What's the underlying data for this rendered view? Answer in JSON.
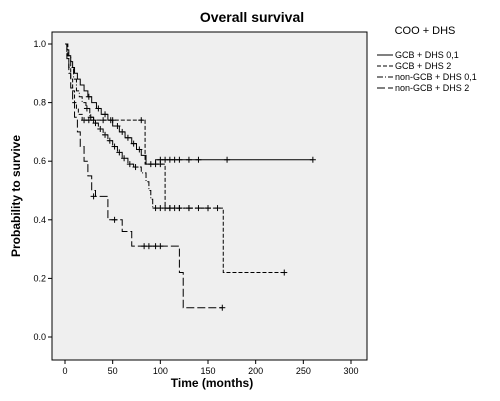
{
  "chart_data": {
    "type": "line",
    "title": "Overall survival",
    "xlabel": "Time (months)",
    "ylabel": "Probability to survive",
    "xlim": [
      0,
      300
    ],
    "ylim": [
      0,
      1
    ],
    "xticks": [
      0,
      50,
      100,
      150,
      200,
      250,
      300
    ],
    "yticks": [
      0.0,
      0.2,
      0.4,
      0.6,
      0.8,
      1.0
    ],
    "xtick_labels": [
      "0",
      "50",
      "100",
      "150",
      "200",
      "250",
      "300"
    ],
    "ytick_labels": [
      "0.0",
      "0.2",
      "0.4",
      "0.6",
      "0.8",
      "1.0"
    ],
    "grid": false,
    "plot_background": "#efefef",
    "legend": {
      "title": "COO + DHS",
      "placement": "right"
    },
    "series": [
      {
        "name": "GCB + DHS 0,1",
        "style": "solid",
        "points": [
          [
            0,
            1.0
          ],
          [
            2,
            0.98
          ],
          [
            4,
            0.96
          ],
          [
            6,
            0.94
          ],
          [
            8,
            0.92
          ],
          [
            10,
            0.9
          ],
          [
            13,
            0.88
          ],
          [
            16,
            0.86
          ],
          [
            20,
            0.84
          ],
          [
            24,
            0.82
          ],
          [
            28,
            0.8
          ],
          [
            33,
            0.78
          ],
          [
            38,
            0.76
          ],
          [
            45,
            0.74
          ],
          [
            50,
            0.72
          ],
          [
            57,
            0.7
          ],
          [
            63,
            0.68
          ],
          [
            70,
            0.66
          ],
          [
            75,
            0.64
          ],
          [
            80,
            0.62
          ],
          [
            85,
            0.59
          ],
          [
            90,
            0.59
          ],
          [
            95,
            0.605
          ],
          [
            260,
            0.605
          ]
        ],
        "censored": [
          [
            25,
            0.82
          ],
          [
            35,
            0.78
          ],
          [
            42,
            0.76
          ],
          [
            48,
            0.74
          ],
          [
            55,
            0.72
          ],
          [
            60,
            0.7
          ],
          [
            66,
            0.68
          ],
          [
            72,
            0.66
          ],
          [
            78,
            0.64
          ],
          [
            100,
            0.605
          ],
          [
            105,
            0.605
          ],
          [
            110,
            0.605
          ],
          [
            115,
            0.605
          ],
          [
            120,
            0.605
          ],
          [
            130,
            0.605
          ],
          [
            140,
            0.605
          ],
          [
            170,
            0.605
          ],
          [
            260,
            0.605
          ]
        ]
      },
      {
        "name": "GCB + DHS 2",
        "style": "dashed",
        "points": [
          [
            0,
            1.0
          ],
          [
            2,
            0.96
          ],
          [
            4,
            0.92
          ],
          [
            6,
            0.88
          ],
          [
            8,
            0.84
          ],
          [
            10,
            0.8
          ],
          [
            12,
            0.78
          ],
          [
            14,
            0.76
          ],
          [
            18,
            0.74
          ],
          [
            84,
            0.74
          ],
          [
            84,
            0.59
          ],
          [
            105,
            0.59
          ],
          [
            105,
            0.44
          ],
          [
            166,
            0.44
          ],
          [
            166,
            0.22
          ],
          [
            230,
            0.22
          ]
        ],
        "censored": [
          [
            20,
            0.74
          ],
          [
            25,
            0.74
          ],
          [
            30,
            0.74
          ],
          [
            40,
            0.74
          ],
          [
            50,
            0.74
          ],
          [
            80,
            0.74
          ],
          [
            90,
            0.59
          ],
          [
            95,
            0.59
          ],
          [
            100,
            0.59
          ],
          [
            110,
            0.44
          ],
          [
            115,
            0.44
          ],
          [
            120,
            0.44
          ],
          [
            130,
            0.44
          ],
          [
            140,
            0.44
          ],
          [
            150,
            0.44
          ],
          [
            160,
            0.44
          ],
          [
            230,
            0.22
          ]
        ]
      },
      {
        "name": "non-GCB + DHS 0,1",
        "style": "dashdot",
        "points": [
          [
            0,
            1.0
          ],
          [
            3,
            0.96
          ],
          [
            6,
            0.92
          ],
          [
            9,
            0.88
          ],
          [
            12,
            0.84
          ],
          [
            15,
            0.82
          ],
          [
            18,
            0.8
          ],
          [
            22,
            0.78
          ],
          [
            26,
            0.75
          ],
          [
            30,
            0.73
          ],
          [
            35,
            0.71
          ],
          [
            40,
            0.69
          ],
          [
            45,
            0.67
          ],
          [
            50,
            0.65
          ],
          [
            55,
            0.63
          ],
          [
            60,
            0.61
          ],
          [
            66,
            0.59
          ],
          [
            72,
            0.58
          ],
          [
            80,
            0.56
          ],
          [
            85,
            0.53
          ],
          [
            88,
            0.5
          ],
          [
            90,
            0.47
          ],
          [
            92,
            0.44
          ],
          [
            150,
            0.44
          ]
        ],
        "censored": [
          [
            23,
            0.78
          ],
          [
            27,
            0.75
          ],
          [
            32,
            0.73
          ],
          [
            37,
            0.71
          ],
          [
            42,
            0.69
          ],
          [
            47,
            0.67
          ],
          [
            52,
            0.65
          ],
          [
            57,
            0.63
          ],
          [
            62,
            0.61
          ],
          [
            68,
            0.59
          ],
          [
            74,
            0.58
          ],
          [
            95,
            0.44
          ],
          [
            100,
            0.44
          ],
          [
            105,
            0.44
          ],
          [
            110,
            0.44
          ],
          [
            120,
            0.44
          ],
          [
            130,
            0.44
          ],
          [
            150,
            0.44
          ]
        ]
      },
      {
        "name": "non-GCB + DHS 2",
        "style": "longdash",
        "points": [
          [
            0,
            1.0
          ],
          [
            2,
            0.95
          ],
          [
            4,
            0.9
          ],
          [
            6,
            0.85
          ],
          [
            8,
            0.8
          ],
          [
            10,
            0.75
          ],
          [
            13,
            0.7
          ],
          [
            16,
            0.65
          ],
          [
            20,
            0.6
          ],
          [
            24,
            0.55
          ],
          [
            28,
            0.5
          ],
          [
            32,
            0.48
          ],
          [
            45,
            0.48
          ],
          [
            45,
            0.4
          ],
          [
            60,
            0.4
          ],
          [
            60,
            0.36
          ],
          [
            70,
            0.36
          ],
          [
            70,
            0.31
          ],
          [
            120,
            0.31
          ],
          [
            120,
            0.22
          ],
          [
            124,
            0.22
          ],
          [
            124,
            0.1
          ],
          [
            165,
            0.1
          ]
        ],
        "censored": [
          [
            30,
            0.48
          ],
          [
            52,
            0.4
          ],
          [
            83,
            0.31
          ],
          [
            88,
            0.31
          ],
          [
            95,
            0.31
          ],
          [
            100,
            0.31
          ],
          [
            165,
            0.1
          ]
        ]
      }
    ]
  }
}
